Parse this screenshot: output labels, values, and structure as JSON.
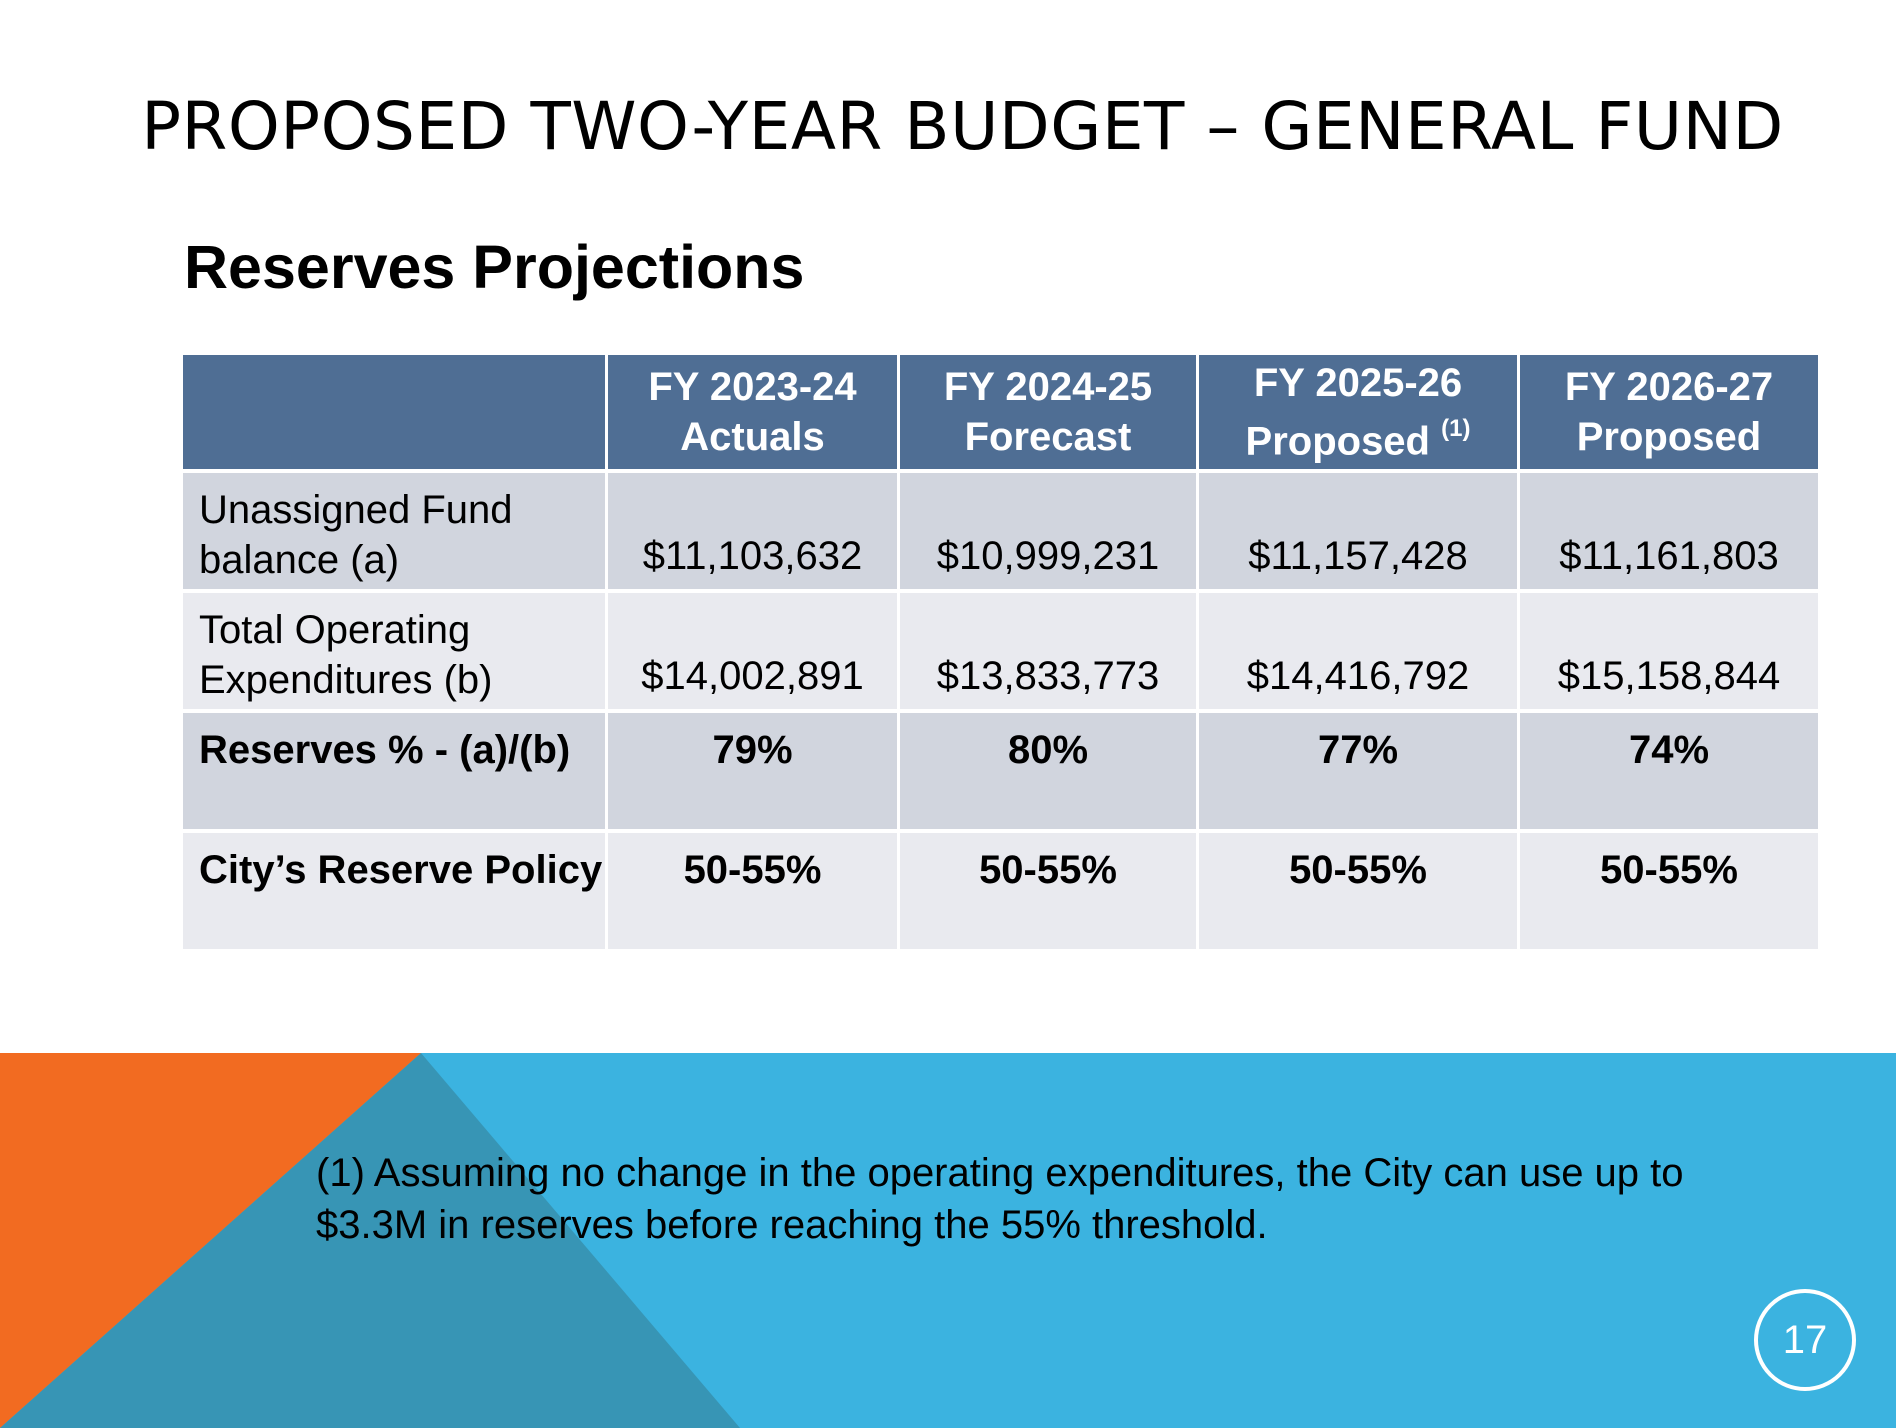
{
  "slide": {
    "title": "PROPOSED TWO-YEAR BUDGET – GENERAL FUND",
    "subtitle": "Reserves Projections",
    "page_number": "17"
  },
  "table": {
    "headers": [
      {
        "line1": "",
        "line2": "",
        "sup": ""
      },
      {
        "line1": "FY 2023-24",
        "line2": "Actuals",
        "sup": ""
      },
      {
        "line1": "FY 2024-25",
        "line2": "Forecast",
        "sup": ""
      },
      {
        "line1": "FY 2025-26",
        "line2": "Proposed",
        "sup": "(1)"
      },
      {
        "line1": "FY 2026-27",
        "line2": "Proposed",
        "sup": ""
      }
    ],
    "rows": [
      {
        "label": "Unassigned Fund balance (a)",
        "values": [
          "$11,103,632",
          "$10,999,231",
          "$11,157,428",
          "$11,161,803"
        ]
      },
      {
        "label": "Total Operating Expenditures (b)",
        "values": [
          "$14,002,891",
          "$13,833,773",
          "$14,416,792",
          "$15,158,844"
        ]
      },
      {
        "label": "Reserves % - (a)/(b)",
        "values": [
          "79%",
          "80%",
          "77%",
          "74%"
        ]
      },
      {
        "label": "City’s Reserve Policy",
        "values": [
          "50-55%",
          "50-55%",
          "50-55%",
          "50-55%"
        ]
      }
    ]
  },
  "footnote": "(1) Assuming no change in the operating expenditures, the City can use up to $3.3M in reserves before reaching the 55% threshold.",
  "colors": {
    "header_bg": "#4f6e94",
    "row_odd": "#d1d5de",
    "row_even": "#e9eaef",
    "band_blue": "#3bb3e0",
    "band_orange": "#f26b21",
    "band_teal": "#3795b5"
  }
}
